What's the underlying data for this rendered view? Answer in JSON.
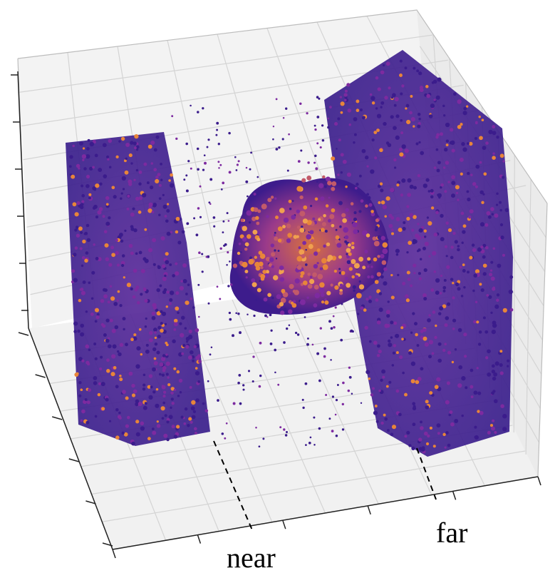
{
  "chart_data": {
    "type": "scatter",
    "projection": "3d",
    "colormap": "plasma",
    "colors": {
      "low": "#3b1c8c",
      "mid": "#7d2aa0",
      "high": "#e8853a",
      "pane": "#f2f2f2",
      "pane_side": "#e9e9e9",
      "grid": "#cfcfcf",
      "axis": "#222222"
    },
    "grid": true,
    "axis_ticks_labelled": false,
    "annotations": [
      {
        "id": "near",
        "text": "near"
      },
      {
        "id": "far",
        "text": "far"
      }
    ],
    "clusters": [
      {
        "name": "",
        "x": [
          0.0,
          0.25
        ],
        "y": [
          0.0,
          1.0
        ],
        "z": [
          0.0,
          1.0
        ],
        "density": "dense"
      },
      {
        "name": "",
        "x": [
          0.75,
          1.0
        ],
        "y": [
          0.0,
          1.0
        ],
        "z": [
          0.0,
          1.0
        ],
        "density": "dense"
      },
      {
        "name": "",
        "x": [
          0.35,
          0.65
        ],
        "y": [
          0.35,
          0.65
        ],
        "z": [
          0.35,
          0.75
        ],
        "density": "dense"
      },
      {
        "name": "",
        "x": [
          0.25,
          0.75
        ],
        "y": [
          0.0,
          1.0
        ],
        "z": [
          0.0,
          1.0
        ],
        "density": "sparse"
      }
    ]
  }
}
